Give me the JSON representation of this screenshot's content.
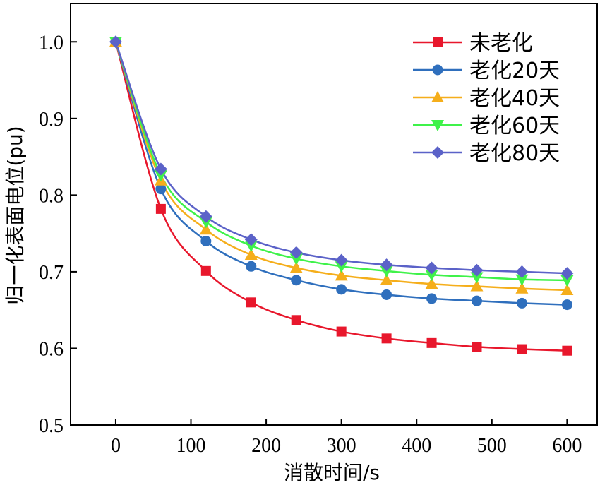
{
  "chart_data": {
    "type": "line",
    "xlabel": "消散时间/s",
    "ylabel": "归一化表面电位(pu)",
    "xlim": [
      -60,
      640
    ],
    "ylim": [
      0.5,
      1.05
    ],
    "x_ticks": [
      0,
      100,
      200,
      300,
      400,
      500,
      600
    ],
    "y_ticks": [
      0.5,
      0.6,
      0.7,
      0.8,
      0.9,
      1.0
    ],
    "x_tick_labels": [
      "0",
      "100",
      "200",
      "300",
      "400",
      "500",
      "600"
    ],
    "y_tick_labels": [
      "0.5",
      "0.6",
      "0.7",
      "0.8",
      "0.9",
      "1.0"
    ],
    "x": [
      0,
      60,
      120,
      180,
      240,
      300,
      360,
      420,
      480,
      540,
      600
    ],
    "legend_position": "top-right",
    "grid": false,
    "series": [
      {
        "name": "未老化",
        "color": "#e8172c",
        "marker": "square",
        "values": [
          1.0,
          0.782,
          0.701,
          0.66,
          0.637,
          0.622,
          0.613,
          0.607,
          0.602,
          0.599,
          0.597
        ]
      },
      {
        "name": "老化20天",
        "color": "#2f6fbd",
        "marker": "circle",
        "values": [
          1.0,
          0.808,
          0.74,
          0.707,
          0.689,
          0.677,
          0.67,
          0.665,
          0.662,
          0.659,
          0.657
        ]
      },
      {
        "name": "老化40天",
        "color": "#f5ae1b",
        "marker": "triangle-up",
        "values": [
          1.0,
          0.819,
          0.755,
          0.722,
          0.705,
          0.695,
          0.689,
          0.684,
          0.681,
          0.678,
          0.676
        ]
      },
      {
        "name": "老化60天",
        "color": "#3ff24a",
        "marker": "triangle-down",
        "values": [
          1.0,
          0.826,
          0.765,
          0.734,
          0.717,
          0.707,
          0.701,
          0.696,
          0.693,
          0.69,
          0.689
        ]
      },
      {
        "name": "老化80天",
        "color": "#5b62c8",
        "marker": "diamond",
        "values": [
          1.0,
          0.834,
          0.772,
          0.742,
          0.725,
          0.715,
          0.709,
          0.705,
          0.702,
          0.7,
          0.698
        ]
      }
    ]
  }
}
